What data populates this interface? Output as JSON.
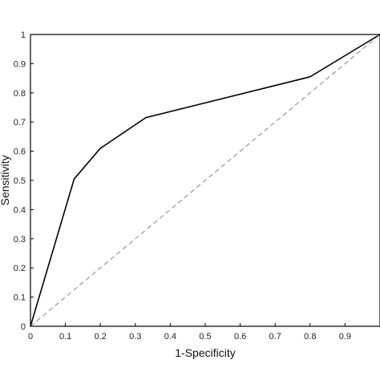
{
  "chart_data": {
    "type": "line",
    "title": "",
    "xlabel": "1-Specificity",
    "ylabel": "Sensitivity",
    "xlim": [
      0,
      1
    ],
    "ylim": [
      0,
      1
    ],
    "grid": false,
    "x_ticks": [
      "0",
      "0.1",
      "0.2",
      "0.3",
      "0.4",
      "0.5",
      "0.6",
      "0.7",
      "0.8",
      "0.9"
    ],
    "y_ticks": [
      "0",
      "0.1",
      "0.2",
      "0.3",
      "0.4",
      "0.5",
      "0.6",
      "0.7",
      "0.8",
      "0.9",
      "1"
    ],
    "series": [
      {
        "style": "solid",
        "color": "#000000",
        "x": [
          0,
          0.125,
          0.2,
          0.33,
          0.8,
          1.0
        ],
        "y": [
          0,
          0.505,
          0.61,
          0.715,
          0.855,
          1.0
        ]
      },
      {
        "style": "dashed",
        "color": "#777777",
        "x": [
          0,
          1
        ],
        "y": [
          0,
          1
        ]
      }
    ]
  }
}
